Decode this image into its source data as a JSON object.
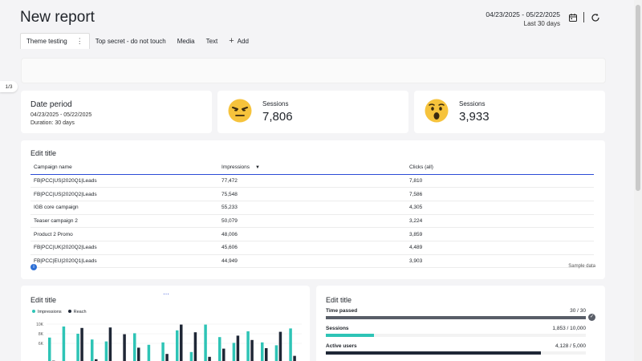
{
  "header": {
    "title": "New report",
    "date_range": "04/23/2025 - 05/22/2025",
    "date_sub": "Last 30 days"
  },
  "tabs": [
    {
      "label": "Theme testing",
      "active": true
    },
    {
      "label": "Top secret - do not touch"
    },
    {
      "label": "Media"
    },
    {
      "label": "Text"
    },
    {
      "label": "Add"
    }
  ],
  "page_indicator": "1/3",
  "date_card": {
    "title": "Date period",
    "range": "04/23/2025 - 05/22/2025",
    "duration": "Duration: 30 days"
  },
  "kpis": [
    {
      "label": "Sessions",
      "value": "7,806",
      "icon": "angry-face-icon"
    },
    {
      "label": "Sessions",
      "value": "3,933",
      "icon": "shocked-face-icon"
    }
  ],
  "table": {
    "title": "Edit title",
    "columns": [
      "Campaign name",
      "Impressions",
      "Clicks (all)"
    ],
    "rows": [
      [
        "FB|PCC|US|2020Q1|Leads",
        "77,472",
        "7,810"
      ],
      [
        "FB|PCC|US|2020Q2|Leads",
        "75,548",
        "7,586"
      ],
      [
        "IGB core campaign",
        "55,233",
        "4,305"
      ],
      [
        "Teaser campaign 2",
        "50,079",
        "3,224"
      ],
      [
        "Product 2 Promo",
        "48,006",
        "3,859"
      ],
      [
        "FB|PCC|UK|2020Q2|Leads",
        "45,606",
        "4,489"
      ],
      [
        "FB|PCC|EU|2020Q1|Leads",
        "44,949",
        "3,903"
      ]
    ],
    "footer": "Sample data"
  },
  "chart_card": {
    "title": "Edit title",
    "legend": [
      {
        "name": "Impressions",
        "color": "#2ec4b6"
      },
      {
        "name": "Reach",
        "color": "#1f2736"
      }
    ]
  },
  "chart_data": {
    "type": "bar",
    "series": [
      {
        "name": "Impressions",
        "values": [
          7200,
          9500,
          8000,
          6800,
          6400,
          0,
          8100,
          5700,
          6200,
          8700,
          4200,
          9900,
          7300,
          6100,
          8500,
          6200,
          5600,
          9100
        ]
      },
      {
        "name": "Reach",
        "values": [
          2400,
          2100,
          9200,
          2700,
          9300,
          7900,
          5100,
          1800,
          3800,
          9900,
          8300,
          3200,
          4900,
          7600,
          6700,
          5000,
          8400,
          3400
        ]
      }
    ],
    "ylim": [
      0,
      10000
    ],
    "ytick_labels": [
      "10K",
      "8K",
      "6K"
    ],
    "ytick_values": [
      10000,
      8000,
      6000
    ]
  },
  "progress_card": {
    "title": "Edit title",
    "items": [
      {
        "label": "Time passed",
        "value": "30 / 30",
        "fraction": 1.0,
        "color": "#595e68",
        "done": true
      },
      {
        "label": "Sessions",
        "value": "1,853 / 10,000",
        "fraction": 0.185,
        "color": "#2ec4b6",
        "done": false
      },
      {
        "label": "Active users",
        "value": "4,128 / 5,000",
        "fraction": 0.826,
        "color": "#1f2736",
        "done": false
      }
    ]
  }
}
